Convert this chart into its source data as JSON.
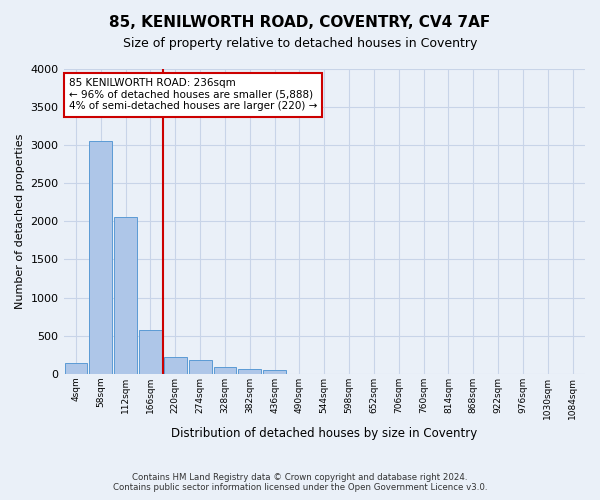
{
  "title": "85, KENILWORTH ROAD, COVENTRY, CV4 7AF",
  "subtitle": "Size of property relative to detached houses in Coventry",
  "xlabel": "Distribution of detached houses by size in Coventry",
  "ylabel": "Number of detached properties",
  "footer_line1": "Contains HM Land Registry data © Crown copyright and database right 2024.",
  "footer_line2": "Contains public sector information licensed under the Open Government Licence v3.0.",
  "bar_labels": [
    "4sqm",
    "58sqm",
    "112sqm",
    "166sqm",
    "220sqm",
    "274sqm",
    "328sqm",
    "382sqm",
    "436sqm",
    "490sqm",
    "544sqm",
    "598sqm",
    "652sqm",
    "706sqm",
    "760sqm",
    "814sqm",
    "868sqm",
    "922sqm",
    "976sqm",
    "1030sqm",
    "1084sqm"
  ],
  "bar_values": [
    140,
    3060,
    2060,
    570,
    215,
    185,
    90,
    65,
    50,
    0,
    0,
    0,
    0,
    0,
    0,
    0,
    0,
    0,
    0,
    0,
    0
  ],
  "bar_color": "#aec6e8",
  "bar_edgecolor": "#5b9bd5",
  "annotation_line_xbin": 4,
  "annotation_box_text": "85 KENILWORTH ROAD: 236sqm\n← 96% of detached houses are smaller (5,888)\n4% of semi-detached houses are larger (220) →",
  "annotation_box_color": "#cc0000",
  "vline_color": "#cc0000",
  "ylim": [
    0,
    4000
  ],
  "yticks": [
    0,
    500,
    1000,
    1500,
    2000,
    2500,
    3000,
    3500,
    4000
  ],
  "grid_color": "#c8d4e8",
  "background_color": "#eaf0f8",
  "plot_bg_color": "#eaf0f8"
}
